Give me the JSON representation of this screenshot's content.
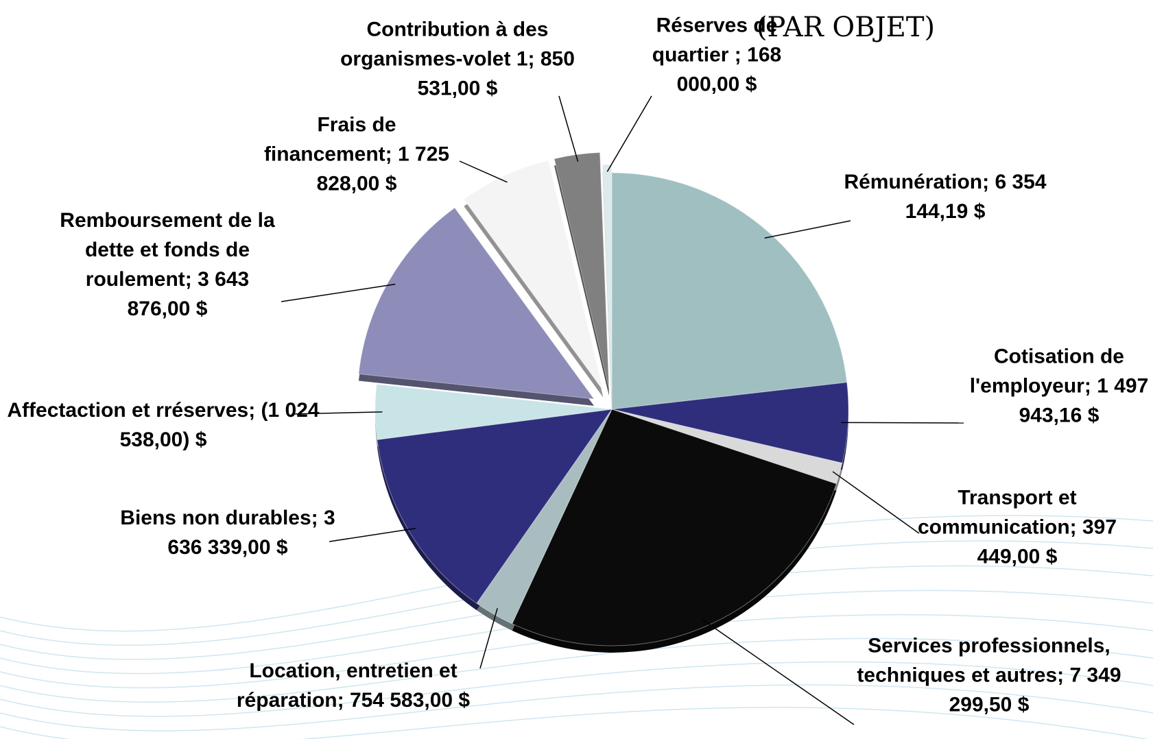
{
  "chart_data": {
    "type": "pie",
    "title": "(PAR OBJET)",
    "categories": [
      "Rémunération;",
      "Cotisation de l'employeur;",
      "Transport et communication;",
      "Services professionnels, techniques et autres;",
      "Location, entretien et réparation;",
      "Biens non durables;",
      "Affectaction et rréserves;",
      "Remboursement de la dette et fonds de roulement;",
      "Frais de financement;",
      "Contribution à des organismes-volet 1;",
      "Réserves de quartier ;"
    ],
    "values": [
      6354144.19,
      1497943.16,
      397449.0,
      7349299.5,
      754583.0,
      3636339.0,
      -1024538.0,
      3643876.0,
      1725828.0,
      850531.0,
      168000.0
    ],
    "value_labels": [
      "6 354 144,19  $",
      "1 497 943,16  $",
      "397 449,00  $",
      "7 349 299,50  $",
      "754 583,00  $",
      "3 636 339,00  $",
      "(1 024 538,00) $",
      "3 643 876,00  $",
      "1 725 828,00  $",
      "850 531,00  $",
      "168 000,00  $"
    ],
    "colors": [
      "#a0bfc1",
      "#2f2e7c",
      "#d9d9d9",
      "#0b0b0b",
      "#a9bdc0",
      "#2f2e7c",
      "#c9e4e7",
      "#8e8cb8",
      "#f4f4f4",
      "#808080",
      "#dde9eb"
    ]
  }
}
